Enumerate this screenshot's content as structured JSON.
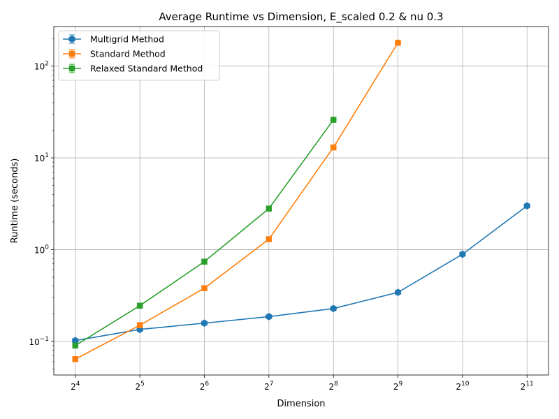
{
  "chart_data": {
    "type": "line",
    "title": "Average Runtime vs Dimension, E_scaled 0.2 & nu 0.3",
    "xlabel": "Dimension",
    "ylabel": "Runtime (seconds)",
    "x_scale": "log2",
    "y_scale": "log10",
    "xlim": [
      12.7,
      2580
    ],
    "ylim": [
      0.043,
      270
    ],
    "x_ticks": [
      {
        "value": 16,
        "base": "2",
        "exp": "4"
      },
      {
        "value": 32,
        "base": "2",
        "exp": "5"
      },
      {
        "value": 64,
        "base": "2",
        "exp": "6"
      },
      {
        "value": 128,
        "base": "2",
        "exp": "7"
      },
      {
        "value": 256,
        "base": "2",
        "exp": "8"
      },
      {
        "value": 512,
        "base": "2",
        "exp": "9"
      },
      {
        "value": 1024,
        "base": "2",
        "exp": "10"
      },
      {
        "value": 2048,
        "base": "2",
        "exp": "11"
      }
    ],
    "y_ticks": [
      {
        "value": 0.1,
        "base": "10",
        "exp": "−1"
      },
      {
        "value": 1,
        "base": "10",
        "exp": "0"
      },
      {
        "value": 10,
        "base": "10",
        "exp": "1"
      },
      {
        "value": 100,
        "base": "10",
        "exp": "2"
      }
    ],
    "grid": true,
    "legend_position": "top-left",
    "series": [
      {
        "name": "Multigrid Method",
        "color": "#1f77b4",
        "marker": "hexagon",
        "x": [
          16,
          32,
          64,
          128,
          256,
          512,
          1024,
          2048
        ],
        "y": [
          0.102,
          0.135,
          0.158,
          0.186,
          0.228,
          0.342,
          0.89,
          3.0
        ]
      },
      {
        "name": "Standard Method",
        "color": "#ff7f0e",
        "marker": "square",
        "x": [
          16,
          32,
          64,
          128,
          256,
          512
        ],
        "y": [
          0.064,
          0.15,
          0.38,
          1.3,
          13.0,
          180.0
        ]
      },
      {
        "name": "Relaxed Standard Method",
        "color": "#2ca02c",
        "marker": "square",
        "x": [
          16,
          32,
          64,
          128,
          256
        ],
        "y": [
          0.09,
          0.245,
          0.74,
          2.8,
          26.0
        ]
      }
    ]
  }
}
